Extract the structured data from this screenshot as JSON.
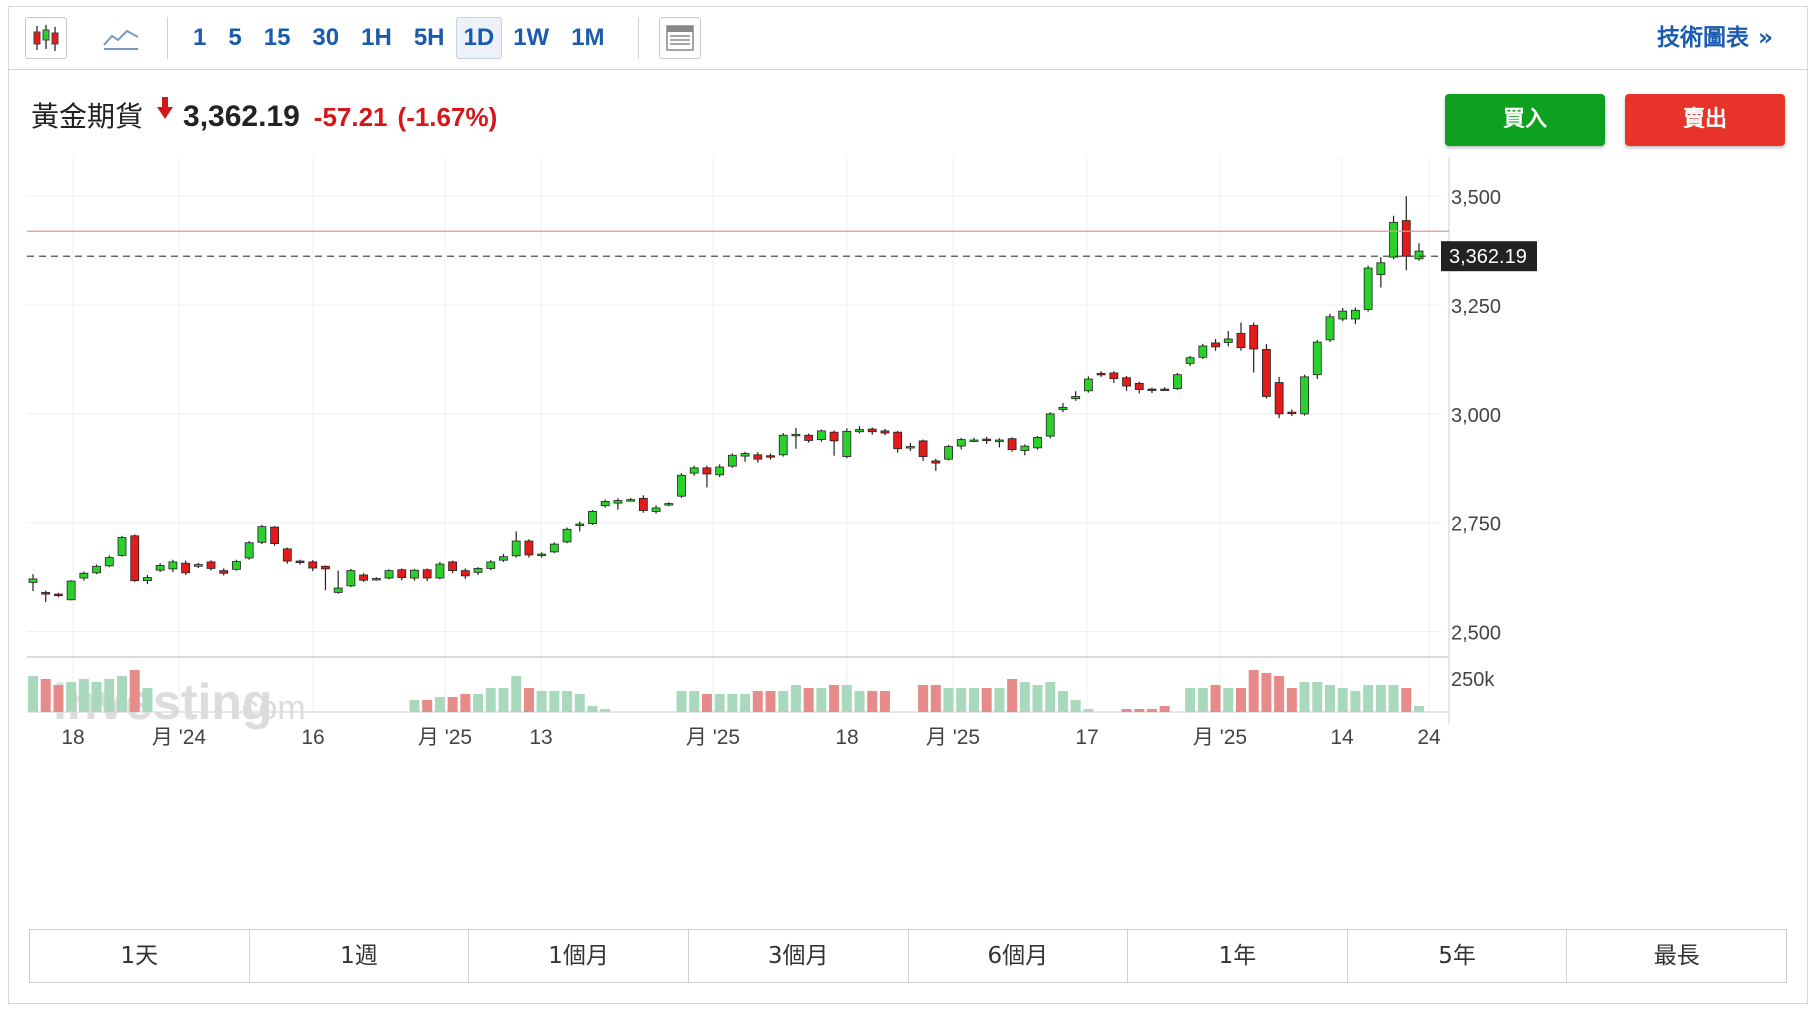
{
  "toolbar": {
    "chart_type_icon": "candlestick-icon",
    "line_icon": "line-chart-icon",
    "intervals": [
      "1",
      "5",
      "15",
      "30",
      "1H",
      "5H",
      "1D",
      "1W",
      "1M"
    ],
    "active_interval": "1D",
    "layout_icon": "layout-icon",
    "technical_link": "技術圖表",
    "technical_chevron": "»"
  },
  "quote": {
    "symbol": "黃金期貨",
    "direction_icon": "down-arrow-icon",
    "price": "3,362.19",
    "change": "-57.21",
    "change_pct": "(-1.67%)"
  },
  "actions": {
    "buy": "買入",
    "sell": "賣出"
  },
  "watermark": {
    "brand": "investing",
    "suffix": ".com"
  },
  "ranges": [
    "1天",
    "1週",
    "1個月",
    "3個月",
    "6個月",
    "1年",
    "5年",
    "最長"
  ],
  "colors": {
    "up": "#2bd12b",
    "down": "#e31b1b",
    "vol_up": "#a9d9bc",
    "vol_down": "#e78a8a",
    "accent": "#1a5bb0"
  },
  "chart_data": {
    "type": "candlestick",
    "x_tick_labels": [
      "18",
      "月 '24",
      "16",
      "月 '25",
      "13",
      "月 '25",
      "18",
      "月 '25",
      "17",
      "月 '25",
      "14",
      "24"
    ],
    "y_tick_labels": [
      "3,500",
      "3,250",
      "3,000",
      "2,750",
      "2,500"
    ],
    "ylim": [
      2460,
      3590
    ],
    "volume_tick_label": "250k",
    "last_price_label": "3,362.19",
    "last_price": 3362.19,
    "previous_close": 3419.4,
    "candles": [
      [
        2613,
        2621,
        2593,
        2632,
        12
      ],
      [
        2590,
        2586,
        2568,
        2594,
        11
      ],
      [
        2586,
        2585,
        2579,
        2589,
        9
      ],
      [
        2573,
        2616,
        2572,
        2618,
        10
      ],
      [
        2623,
        2634,
        2617,
        2638,
        11
      ],
      [
        2635,
        2650,
        2632,
        2654,
        10
      ],
      [
        2651,
        2670,
        2648,
        2675,
        11
      ],
      [
        2675,
        2716,
        2672,
        2720,
        12
      ],
      [
        2720,
        2617,
        2614,
        2723,
        14
      ],
      [
        2617,
        2624,
        2609,
        2630,
        8
      ],
      [
        2641,
        2652,
        2637,
        2657,
        0
      ],
      [
        2644,
        2660,
        2637,
        2665,
        0
      ],
      [
        2657,
        2635,
        2630,
        2663,
        0
      ],
      [
        2650,
        2654,
        2646,
        2658,
        0
      ],
      [
        2660,
        2645,
        2640,
        2664,
        0
      ],
      [
        2640,
        2634,
        2629,
        2645,
        0
      ],
      [
        2643,
        2661,
        2640,
        2665,
        0
      ],
      [
        2669,
        2704,
        2665,
        2708,
        0
      ],
      [
        2705,
        2741,
        2701,
        2745,
        0
      ],
      [
        2740,
        2702,
        2697,
        2742,
        0
      ],
      [
        2690,
        2662,
        2656,
        2693,
        0
      ],
      [
        2662,
        2660,
        2654,
        2665,
        0
      ],
      [
        2660,
        2646,
        2639,
        2664,
        0
      ],
      [
        2650,
        2644,
        2595,
        2652,
        0
      ],
      [
        2590,
        2600,
        2587,
        2640,
        0
      ],
      [
        2605,
        2640,
        2602,
        2644,
        0
      ],
      [
        2630,
        2618,
        2614,
        2634,
        0
      ],
      [
        2622,
        2622,
        2617,
        2625,
        0
      ],
      [
        2623,
        2640,
        2620,
        2643,
        0
      ],
      [
        2642,
        2624,
        2618,
        2645,
        0
      ],
      [
        2623,
        2641,
        2617,
        2644,
        4
      ],
      [
        2642,
        2623,
        2616,
        2645,
        4
      ],
      [
        2623,
        2655,
        2620,
        2660,
        5
      ],
      [
        2660,
        2640,
        2634,
        2663,
        5
      ],
      [
        2640,
        2628,
        2621,
        2645,
        6
      ],
      [
        2636,
        2645,
        2630,
        2648,
        6
      ],
      [
        2645,
        2660,
        2641,
        2664,
        8
      ],
      [
        2664,
        2672,
        2660,
        2678,
        8
      ],
      [
        2674,
        2708,
        2670,
        2730,
        12
      ],
      [
        2708,
        2676,
        2670,
        2712,
        8
      ],
      [
        2678,
        2678,
        2670,
        2682,
        7
      ],
      [
        2683,
        2701,
        2680,
        2705,
        7
      ],
      [
        2706,
        2735,
        2703,
        2739,
        7
      ],
      [
        2744,
        2747,
        2730,
        2753,
        6
      ],
      [
        2748,
        2776,
        2745,
        2779,
        2
      ],
      [
        2789,
        2799,
        2785,
        2803,
        1
      ],
      [
        2795,
        2801,
        2780,
        2806,
        0
      ],
      [
        2803,
        2803,
        2799,
        2807,
        0
      ],
      [
        2806,
        2778,
        2773,
        2813,
        0
      ],
      [
        2776,
        2784,
        2771,
        2790,
        0
      ],
      [
        2793,
        2794,
        2788,
        2797,
        0
      ],
      [
        2811,
        2859,
        2807,
        2864,
        7
      ],
      [
        2864,
        2876,
        2858,
        2881,
        7
      ],
      [
        2876,
        2862,
        2831,
        2881,
        6
      ],
      [
        2860,
        2878,
        2855,
        2884,
        6
      ],
      [
        2880,
        2905,
        2876,
        2909,
        6
      ],
      [
        2903,
        2909,
        2890,
        2913,
        6
      ],
      [
        2906,
        2896,
        2888,
        2912,
        7
      ],
      [
        2904,
        2901,
        2895,
        2909,
        7
      ],
      [
        2906,
        2951,
        2902,
        2956,
        7
      ],
      [
        2952,
        2953,
        2920,
        2968,
        9
      ],
      [
        2951,
        2939,
        2934,
        2955,
        8
      ],
      [
        2941,
        2961,
        2936,
        2964,
        8
      ],
      [
        2958,
        2938,
        2904,
        2962,
        9
      ],
      [
        2902,
        2960,
        2898,
        2967,
        9
      ],
      [
        2959,
        2964,
        2955,
        2972,
        7
      ],
      [
        2965,
        2959,
        2952,
        2969,
        7
      ],
      [
        2961,
        2956,
        2951,
        2966,
        7
      ],
      [
        2958,
        2920,
        2911,
        2961,
        0
      ],
      [
        2925,
        2925,
        2915,
        2933,
        0
      ],
      [
        2938,
        2902,
        2892,
        2941,
        9
      ],
      [
        2892,
        2887,
        2869,
        2897,
        9
      ],
      [
        2896,
        2925,
        2893,
        2929,
        8
      ],
      [
        2926,
        2941,
        2918,
        2945,
        8
      ],
      [
        2940,
        2940,
        2935,
        2945,
        8
      ],
      [
        2942,
        2940,
        2931,
        2947,
        8
      ],
      [
        2939,
        2940,
        2923,
        2944,
        8
      ],
      [
        2943,
        2918,
        2913,
        2946,
        11
      ],
      [
        2916,
        2926,
        2905,
        2930,
        10
      ],
      [
        2922,
        2946,
        2918,
        2949,
        9
      ],
      [
        2949,
        3000,
        2944,
        3004,
        10
      ],
      [
        3010,
        3015,
        3004,
        3025,
        7
      ],
      [
        3035,
        3040,
        3030,
        3052,
        4
      ],
      [
        3053,
        3080,
        3049,
        3086,
        1
      ],
      [
        3093,
        3091,
        3085,
        3098,
        0
      ],
      [
        3094,
        3081,
        3071,
        3098,
        0
      ],
      [
        3083,
        3064,
        3053,
        3087,
        1
      ],
      [
        3070,
        3056,
        3047,
        3074,
        1
      ],
      [
        3057,
        3054,
        3048,
        3060,
        1
      ],
      [
        3057,
        3056,
        3053,
        3061,
        2
      ],
      [
        3058,
        3090,
        3055,
        3094,
        0
      ],
      [
        3116,
        3129,
        3110,
        3133,
        8
      ],
      [
        3130,
        3156,
        3126,
        3161,
        8
      ],
      [
        3163,
        3154,
        3145,
        3172,
        9
      ],
      [
        3164,
        3172,
        3155,
        3190,
        8
      ],
      [
        3185,
        3152,
        3145,
        3210,
        8
      ],
      [
        3203,
        3149,
        3095,
        3210,
        14
      ],
      [
        3148,
        3040,
        3035,
        3160,
        13
      ],
      [
        3072,
        3000,
        2990,
        3085,
        12
      ],
      [
        3004,
        3002,
        2995,
        3010,
        8
      ],
      [
        3000,
        3085,
        2996,
        3090,
        10
      ],
      [
        3090,
        3165,
        3080,
        3170,
        10
      ],
      [
        3170,
        3223,
        3165,
        3230,
        9
      ],
      [
        3218,
        3236,
        3213,
        3243,
        8
      ],
      [
        3218,
        3238,
        3206,
        3244,
        7
      ],
      [
        3240,
        3335,
        3235,
        3340,
        9
      ],
      [
        3320,
        3347,
        3290,
        3360,
        9
      ],
      [
        3360,
        3440,
        3355,
        3455,
        9
      ],
      [
        3444,
        3362,
        3330,
        3500,
        8
      ],
      [
        3356,
        3374,
        3352,
        3392,
        2
      ]
    ]
  }
}
